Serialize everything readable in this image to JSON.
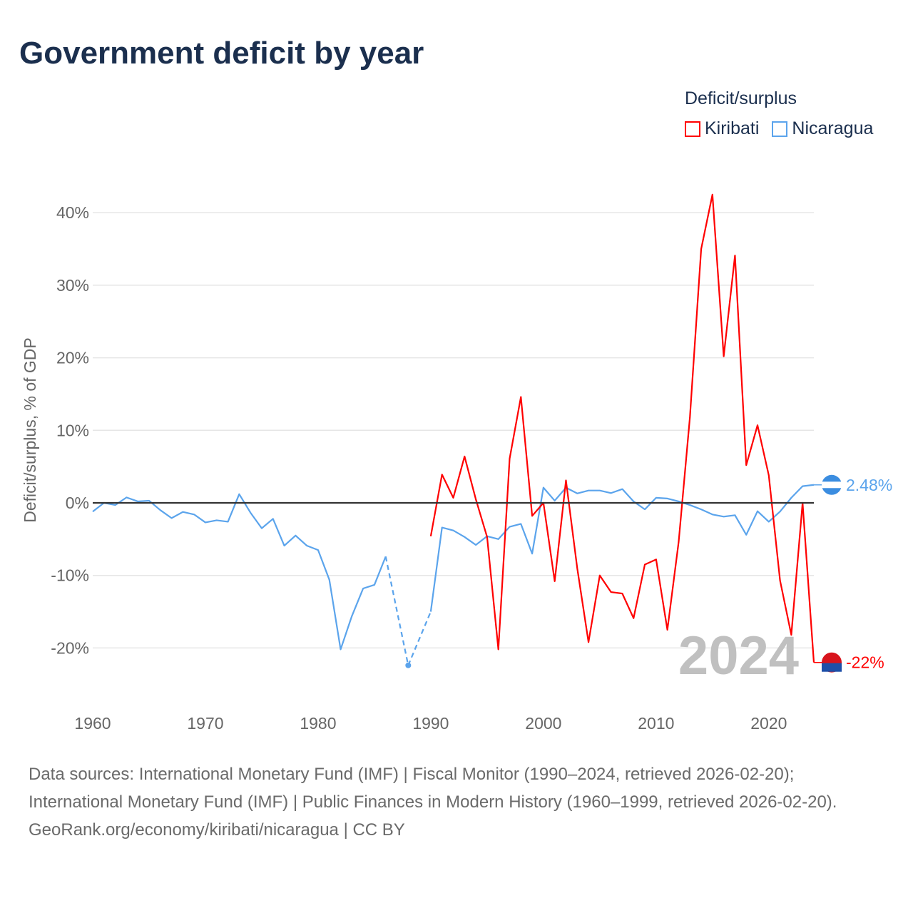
{
  "chart_data": {
    "type": "line",
    "title": "Government deficit by year",
    "xlabel": "",
    "ylabel": "Deficit/surplus, % of GDP",
    "xlim": [
      1960,
      2024
    ],
    "ylim": [
      -24,
      44
    ],
    "x_ticks": [
      1960,
      1970,
      1980,
      1990,
      2000,
      2010,
      2020
    ],
    "y_ticks": [
      -20,
      -10,
      0,
      10,
      20,
      30,
      40
    ],
    "y_tick_labels": [
      "-20%",
      "-10%",
      "0%",
      "10%",
      "20%",
      "30%",
      "40%"
    ],
    "x_tick_labels": [
      "1960",
      "1970",
      "1980",
      "1990",
      "2000",
      "2010",
      "2020"
    ],
    "grid": true,
    "legend_title": "Deficit/surplus",
    "legend_position": "top-right",
    "year_watermark": "2024",
    "series": [
      {
        "name": "Kiribati",
        "color": "#ff0000",
        "end_label": "-22%",
        "start_year": 1990,
        "values": [
          -4.6,
          3.9,
          0.7,
          6.4,
          0.5,
          -4.7,
          -20.2,
          6.1,
          14.6,
          -1.8,
          0,
          -10.8,
          3.1,
          -9.0,
          -19.2,
          -10.0,
          -12.3,
          -12.5,
          -15.9,
          -8.5,
          -7.8,
          -17.5,
          -5.4,
          11.8,
          35.0,
          42.5,
          20.2,
          34.1,
          5.2,
          10.7,
          3.8,
          -10.7,
          -18.2,
          0,
          -22
        ]
      },
      {
        "name": "Nicaragua",
        "color": "#5ba4ec",
        "end_label": "2.48%",
        "start_year": 1960,
        "values": [
          -1.2,
          0,
          -0.3,
          0.75,
          0.2,
          0.3,
          -1.0,
          -2.1,
          -1.25,
          -1.6,
          -2.7,
          -2.4,
          -2.6,
          1.2,
          -1.35,
          -3.5,
          -2.2,
          -5.9,
          -4.5,
          -5.9,
          -6.5,
          -10.6,
          -20.2,
          -15.6,
          -11.8,
          -11.3,
          -7.4,
          null,
          -22.4,
          null,
          -15.0,
          -3.4,
          -3.8,
          -4.7,
          -5.8,
          -4.6,
          -5.0,
          -3.3,
          -2.9,
          -7.0,
          2.1,
          0.3,
          2.1,
          1.3,
          1.7,
          1.7,
          1.35,
          1.9,
          0.2,
          -0.9,
          0.7,
          0.6,
          0.2,
          -0.3,
          -0.9,
          -1.6,
          -1.9,
          -1.7,
          -4.4,
          -1.15,
          -2.6,
          -1.2,
          0.7,
          2.3,
          2.48
        ]
      }
    ]
  },
  "footer": {
    "sources": "Data sources: International Monetary Fund (IMF) | Fiscal Monitor (1990–2024, retrieved 2026-02-20); International Monetary Fund (IMF) | Public Finances in Modern History (1960–1999, retrieved 2026-02-20).",
    "credit": "GeoRank.org/economy/kiribati/nicaragua | CC BY"
  }
}
